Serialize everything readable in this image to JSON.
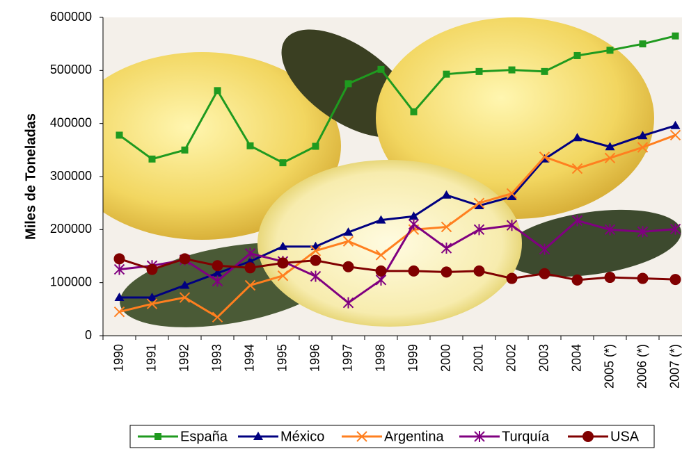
{
  "chart_data": {
    "type": "line",
    "ylabel": "Miles de Toneladas",
    "categories": [
      "1990",
      "1991",
      "1992",
      "1993",
      "1994",
      "1995",
      "1996",
      "1997",
      "1998",
      "1999",
      "2000",
      "2001",
      "2002",
      "2003",
      "2004",
      "2005 (*)",
      "2006 (*)",
      "2007 (*)"
    ],
    "ylim": [
      0,
      600000
    ],
    "yticks": [
      0,
      100000,
      200000,
      300000,
      400000,
      500000,
      600000
    ],
    "legend": "bottom",
    "series": [
      {
        "name": "España",
        "color": "#1f9a1f",
        "marker": "square",
        "values": [
          378000,
          333000,
          350000,
          462000,
          358000,
          326000,
          357000,
          475000,
          502000,
          422000,
          493000,
          498000,
          501000,
          498000,
          528000,
          538000,
          550000,
          565000
        ]
      },
      {
        "name": "México",
        "color": "#000080",
        "marker": "triangle",
        "values": [
          72000,
          72000,
          95000,
          118000,
          140000,
          168000,
          168000,
          195000,
          218000,
          225000,
          265000,
          245000,
          262000,
          333000,
          373000,
          356000,
          377000,
          396000
        ]
      },
      {
        "name": "Argentina",
        "color": "#ff7f1f",
        "marker": "x",
        "values": [
          45000,
          60000,
          72000,
          35000,
          95000,
          113000,
          160000,
          178000,
          152000,
          200000,
          205000,
          250000,
          268000,
          337000,
          315000,
          335000,
          355000,
          378000
        ]
      },
      {
        "name": "Turquía",
        "color": "#800080",
        "marker": "star",
        "values": [
          125000,
          132000,
          143000,
          103000,
          155000,
          140000,
          112000,
          62000,
          105000,
          210000,
          165000,
          200000,
          208000,
          163000,
          217000,
          200000,
          196000,
          201000
        ]
      },
      {
        "name": "USA",
        "color": "#800000",
        "marker": "circle",
        "values": [
          145000,
          125000,
          145000,
          132000,
          128000,
          137000,
          142000,
          130000,
          122000,
          122000,
          120000,
          122000,
          108000,
          117000,
          105000,
          110000,
          108000,
          106000
        ]
      }
    ]
  }
}
